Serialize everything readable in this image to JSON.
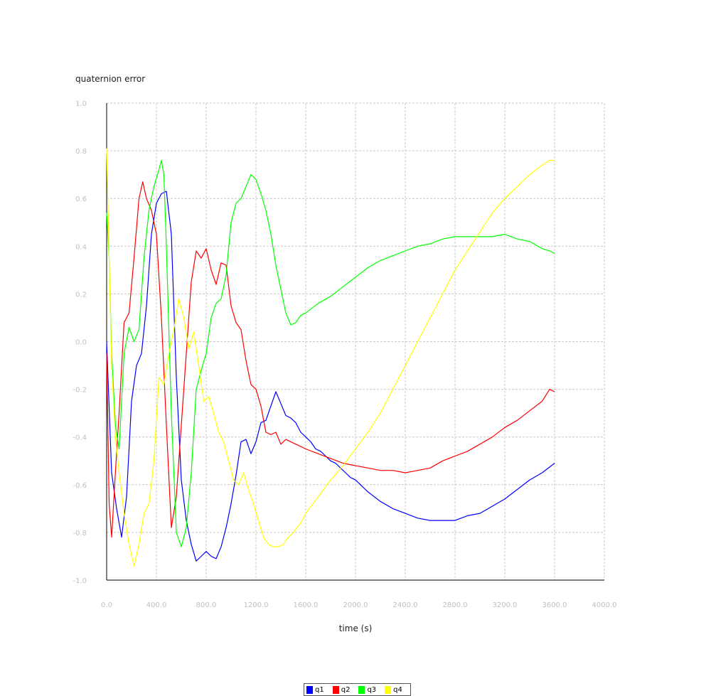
{
  "chart_data": {
    "type": "line",
    "title": "quaternion error",
    "xlabel": "time (s)",
    "ylabel": "",
    "xlim": [
      0,
      4000
    ],
    "ylim": [
      -1.0,
      1.0
    ],
    "xticks": [
      "0.0",
      "400.0",
      "800.0",
      "1200.0",
      "1600.0",
      "2000.0",
      "2400.0",
      "2800.0",
      "3200.0",
      "3600.0",
      "4000.0"
    ],
    "yticks": [
      "1.0",
      "0.8",
      "0.6",
      "0.4",
      "0.2",
      "0.0",
      "-0.2",
      "-0.4",
      "-0.6",
      "-0.8",
      "-1.0"
    ],
    "grid": true,
    "legend_position": "bottom-center",
    "series": [
      {
        "name": "q1",
        "color": "#0000ff",
        "x": [
          0,
          40,
          80,
          120,
          160,
          200,
          240,
          280,
          320,
          360,
          400,
          440,
          480,
          520,
          560,
          600,
          640,
          680,
          720,
          760,
          800,
          840,
          880,
          920,
          960,
          1000,
          1040,
          1080,
          1120,
          1160,
          1200,
          1240,
          1280,
          1320,
          1360,
          1400,
          1440,
          1480,
          1520,
          1560,
          1600,
          1640,
          1680,
          1720,
          1760,
          1800,
          1840,
          1880,
          1920,
          1960,
          2000,
          2100,
          2200,
          2300,
          2400,
          2500,
          2600,
          2700,
          2800,
          2900,
          3000,
          3100,
          3200,
          3300,
          3400,
          3500,
          3600
        ],
        "values": [
          0.0,
          -0.55,
          -0.7,
          -0.82,
          -0.65,
          -0.25,
          -0.1,
          -0.05,
          0.15,
          0.45,
          0.58,
          0.62,
          0.63,
          0.45,
          -0.15,
          -0.58,
          -0.75,
          -0.85,
          -0.92,
          -0.9,
          -0.88,
          -0.9,
          -0.91,
          -0.86,
          -0.78,
          -0.68,
          -0.56,
          -0.42,
          -0.41,
          -0.47,
          -0.42,
          -0.34,
          -0.33,
          -0.27,
          -0.21,
          -0.26,
          -0.31,
          -0.32,
          -0.34,
          -0.38,
          -0.4,
          -0.42,
          -0.45,
          -0.46,
          -0.48,
          -0.5,
          -0.51,
          -0.53,
          -0.55,
          -0.57,
          -0.58,
          -0.63,
          -0.67,
          -0.7,
          -0.72,
          -0.74,
          -0.75,
          -0.75,
          -0.75,
          -0.73,
          -0.72,
          -0.69,
          -0.66,
          -0.62,
          -0.58,
          -0.55,
          -0.51
        ]
      },
      {
        "name": "q2",
        "color": "#ff0000",
        "x": [
          0,
          20,
          40,
          70,
          100,
          140,
          180,
          220,
          260,
          290,
          320,
          360,
          400,
          440,
          480,
          520,
          560,
          600,
          640,
          680,
          720,
          760,
          800,
          840,
          880,
          920,
          960,
          1000,
          1040,
          1080,
          1120,
          1160,
          1200,
          1240,
          1280,
          1320,
          1360,
          1400,
          1440,
          1480,
          1520,
          1560,
          1600,
          1700,
          1800,
          1900,
          2000,
          2100,
          2200,
          2300,
          2400,
          2500,
          2600,
          2700,
          2800,
          2900,
          3000,
          3100,
          3200,
          3300,
          3400,
          3500,
          3560,
          3600
        ],
        "values": [
          -0.05,
          -0.68,
          -0.82,
          -0.55,
          -0.3,
          0.08,
          0.12,
          0.35,
          0.6,
          0.67,
          0.6,
          0.55,
          0.45,
          0.1,
          -0.35,
          -0.78,
          -0.65,
          -0.35,
          -0.05,
          0.25,
          0.38,
          0.35,
          0.39,
          0.3,
          0.24,
          0.33,
          0.32,
          0.15,
          0.08,
          0.05,
          -0.08,
          -0.18,
          -0.2,
          -0.27,
          -0.38,
          -0.39,
          -0.38,
          -0.43,
          -0.41,
          -0.42,
          -0.43,
          -0.44,
          -0.45,
          -0.47,
          -0.49,
          -0.51,
          -0.52,
          -0.53,
          -0.54,
          -0.54,
          -0.55,
          -0.54,
          -0.53,
          -0.5,
          -0.48,
          -0.46,
          -0.43,
          -0.4,
          -0.36,
          -0.33,
          -0.29,
          -0.25,
          -0.2,
          -0.21
        ]
      },
      {
        "name": "q3",
        "color": "#00ff00",
        "x": [
          0,
          20,
          40,
          70,
          100,
          140,
          180,
          220,
          260,
          300,
          340,
          380,
          420,
          440,
          460,
          480,
          520,
          560,
          600,
          640,
          680,
          720,
          760,
          800,
          840,
          880,
          920,
          960,
          1000,
          1040,
          1080,
          1120,
          1160,
          1200,
          1240,
          1280,
          1320,
          1360,
          1400,
          1440,
          1480,
          1520,
          1560,
          1600,
          1700,
          1800,
          1900,
          2000,
          2100,
          2200,
          2300,
          2400,
          2500,
          2600,
          2700,
          2800,
          2900,
          3000,
          3100,
          3200,
          3300,
          3400,
          3500,
          3560,
          3600
        ],
        "values": [
          0.54,
          0.35,
          -0.05,
          -0.35,
          -0.45,
          -0.05,
          0.06,
          0.0,
          0.05,
          0.35,
          0.55,
          0.65,
          0.72,
          0.76,
          0.7,
          0.4,
          -0.3,
          -0.8,
          -0.86,
          -0.78,
          -0.55,
          -0.2,
          -0.12,
          -0.05,
          0.1,
          0.16,
          0.18,
          0.28,
          0.5,
          0.58,
          0.6,
          0.65,
          0.7,
          0.68,
          0.62,
          0.55,
          0.45,
          0.32,
          0.22,
          0.12,
          0.07,
          0.08,
          0.11,
          0.12,
          0.16,
          0.19,
          0.23,
          0.27,
          0.31,
          0.34,
          0.36,
          0.38,
          0.4,
          0.41,
          0.43,
          0.44,
          0.44,
          0.44,
          0.44,
          0.45,
          0.43,
          0.42,
          0.39,
          0.38,
          0.37
        ]
      },
      {
        "name": "q4",
        "color": "#ffff00",
        "x": [
          0,
          20,
          40,
          70,
          100,
          140,
          180,
          220,
          260,
          300,
          340,
          380,
          420,
          460,
          500,
          540,
          580,
          620,
          660,
          700,
          740,
          780,
          820,
          860,
          900,
          940,
          980,
          1020,
          1060,
          1100,
          1140,
          1180,
          1220,
          1260,
          1300,
          1340,
          1380,
          1420,
          1460,
          1500,
          1560,
          1600,
          1700,
          1800,
          1900,
          2000,
          2100,
          2200,
          2300,
          2400,
          2500,
          2600,
          2700,
          2800,
          2900,
          3000,
          3100,
          3200,
          3300,
          3400,
          3500,
          3560,
          3600
        ],
        "values": [
          0.81,
          0.35,
          -0.1,
          -0.4,
          -0.55,
          -0.72,
          -0.85,
          -0.94,
          -0.85,
          -0.72,
          -0.68,
          -0.5,
          -0.15,
          -0.18,
          -0.05,
          0.05,
          0.18,
          0.1,
          -0.03,
          0.04,
          -0.1,
          -0.25,
          -0.23,
          -0.3,
          -0.38,
          -0.42,
          -0.5,
          -0.58,
          -0.6,
          -0.55,
          -0.62,
          -0.68,
          -0.75,
          -0.82,
          -0.85,
          -0.86,
          -0.86,
          -0.85,
          -0.82,
          -0.8,
          -0.76,
          -0.72,
          -0.65,
          -0.58,
          -0.52,
          -0.45,
          -0.38,
          -0.3,
          -0.2,
          -0.1,
          0.0,
          0.1,
          0.2,
          0.3,
          0.38,
          0.46,
          0.54,
          0.6,
          0.65,
          0.7,
          0.74,
          0.76,
          0.76
        ]
      }
    ]
  }
}
